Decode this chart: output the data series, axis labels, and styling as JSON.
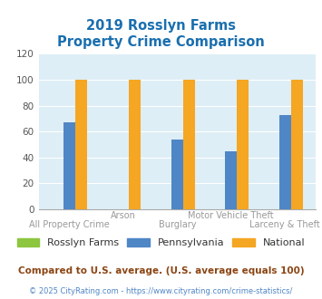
{
  "title": "2019 Rosslyn Farms\nProperty Crime Comparison",
  "categories_bottom": [
    "All Property Crime",
    "Burglary",
    "Larceny & Theft"
  ],
  "categories_top": [
    "Arson",
    "Motor Vehicle Theft"
  ],
  "categories_all": [
    "All Property Crime",
    "Arson",
    "Burglary",
    "Motor Vehicle Theft",
    "Larceny & Theft"
  ],
  "rosslyn_farms": [
    0,
    0,
    0,
    0,
    0
  ],
  "pennsylvania": [
    67,
    0,
    54,
    45,
    73
  ],
  "national": [
    100,
    100,
    100,
    100,
    100
  ],
  "rosslyn_color": "#8dc63f",
  "pennsylvania_color": "#4f86c6",
  "national_color": "#f5a623",
  "title_color": "#1a6faf",
  "bg_color": "#ddeef6",
  "fig_color": "#ffffff",
  "ylim": [
    0,
    120
  ],
  "yticks": [
    0,
    20,
    40,
    60,
    80,
    100,
    120
  ],
  "annotation": "Compared to U.S. average. (U.S. average equals 100)",
  "annotation_color": "#8B4513",
  "footer": "© 2025 CityRating.com - https://www.cityrating.com/crime-statistics/",
  "footer_color": "#4f86c6",
  "grid_color": "#ffffff",
  "bar_width": 0.22,
  "legend_label_color": "#333333",
  "tick_label_color": "#888888",
  "ytick_color": "#555555"
}
